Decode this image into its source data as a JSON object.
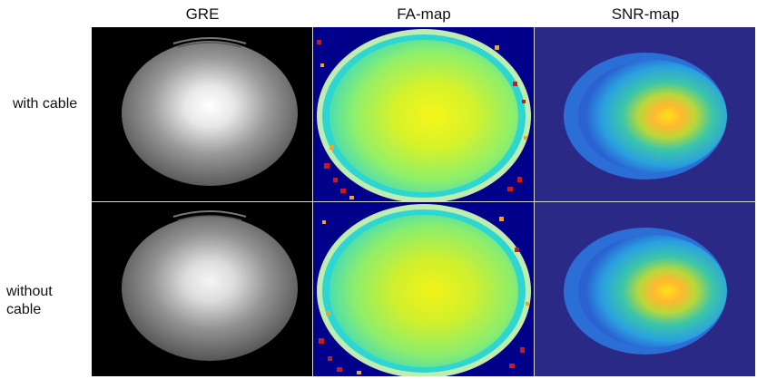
{
  "columns": {
    "gre": "GRE",
    "fa": "FA-map",
    "snr": "SNR-map"
  },
  "rows": {
    "with_cable": "with cable",
    "without_cable_line1": "without",
    "without_cable_line2": "cable"
  },
  "colors": {
    "gre_background": "#000000",
    "fa_background": "#00008b",
    "snr_background": "#2a2a86",
    "fa_main": "#7fef6a",
    "fa_center": "#f6f61a",
    "snr_peak": "#ffd21a",
    "snr_edge": "#2e6fd6"
  }
}
